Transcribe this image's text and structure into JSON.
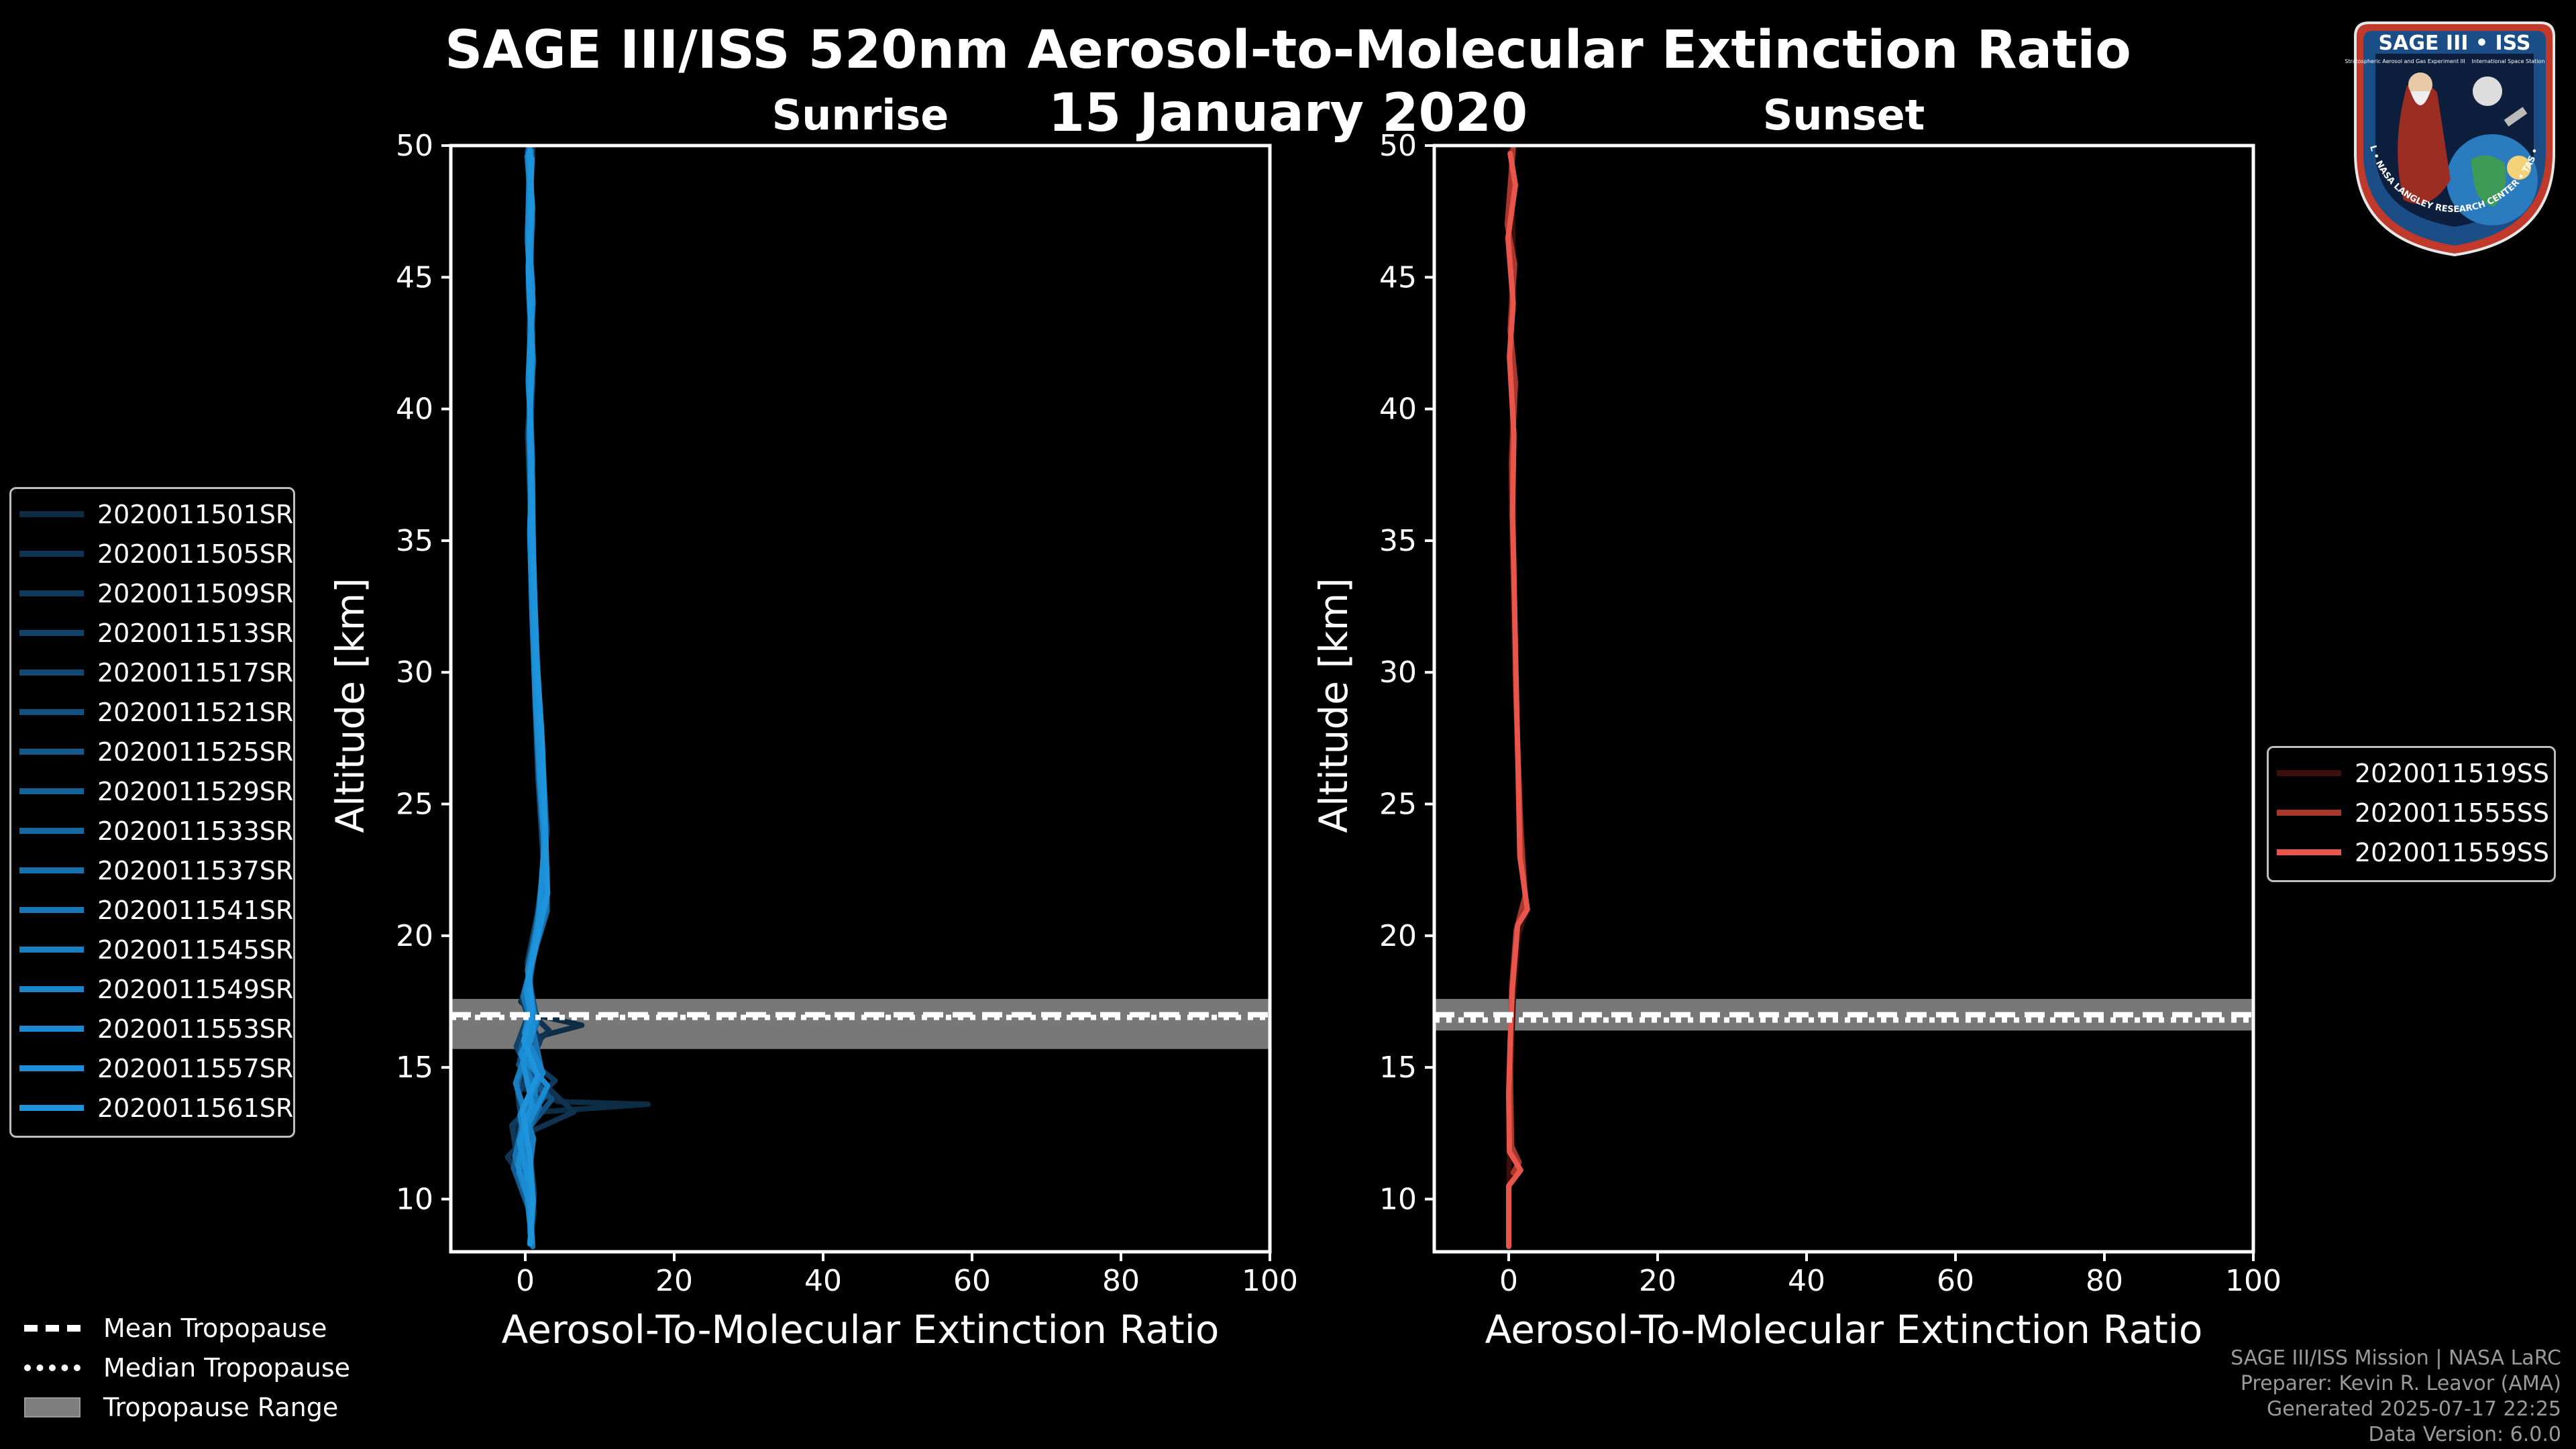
{
  "title": {
    "line1": "SAGE III/ISS 520nm Aerosol-to-Molecular Extinction Ratio",
    "line2": "15 January 2020"
  },
  "logo": {
    "label": "SAGE III • ISS",
    "ring_text": "BALL • NASA LANGLEY RESEARCH CENTER • TAS • ESA",
    "subtitle_left": "Stratospheric Aerosol and Gas Experiment III",
    "subtitle_right": "International Space Station"
  },
  "colors": {
    "sunrise": "#1a87c8",
    "sunset": "#e8554a",
    "tropo_band": "#7e7e7e"
  },
  "chart_data": [
    {
      "type": "line",
      "panel": "sunrise",
      "title": "Sunrise",
      "xlabel": "Aerosol-To-Molecular Extinction Ratio",
      "ylabel": "Altitude [km]",
      "xlim": [
        -10,
        100
      ],
      "ylim": [
        8,
        50
      ],
      "xticks": [
        0,
        20,
        40,
        60,
        80,
        100
      ],
      "yticks": [
        10,
        15,
        20,
        25,
        30,
        35,
        40,
        45,
        50
      ],
      "tropopause": {
        "mean": 17.0,
        "median": 16.9,
        "range": [
          15.7,
          17.6
        ]
      },
      "series": [
        {
          "name": "2020011501SR",
          "color": "#0d2d44",
          "x": [
            0.7,
            0.4,
            0.9,
            0.5,
            1.0,
            0.6,
            0.8,
            1.2,
            1.6,
            2.4,
            3.0,
            1.6,
            0.4,
            -0.6,
            1.2,
            7.6,
            2.2,
            0.5,
            -0.3,
            4.5,
            16.5,
            1.5,
            -1.2,
            0.4,
            1.0,
            0.6,
            1.0
          ],
          "y": [
            49.8,
            47,
            45,
            43,
            41,
            38,
            35,
            32,
            29,
            26,
            21,
            20,
            18,
            17.5,
            17,
            16.6,
            16.2,
            15.5,
            14.2,
            13.7,
            13.6,
            13.3,
            12.7,
            11.5,
            10,
            9,
            8.2
          ]
        },
        {
          "name": "2020011505SR",
          "color": "#0f3350",
          "x": [
            0.2,
            0.8,
            0.4,
            0.9,
            0.3,
            0.7,
            0.9,
            1.3,
            1.8,
            2.2,
            2.6,
            1.2,
            0.1,
            1.0,
            3.2,
            -0.8,
            6.5,
            1.0,
            -2.4,
            0.2,
            1.2,
            0.7
          ],
          "y": [
            49.6,
            47.5,
            44.5,
            42,
            39,
            36,
            33,
            30,
            27,
            25,
            21.5,
            19.5,
            18,
            17,
            16.4,
            15.3,
            13.3,
            12.6,
            11.6,
            10.6,
            9.5,
            8.4
          ]
        },
        {
          "name": "2020011509SR",
          "color": "#103a5c",
          "x": [
            1.0,
            0.5,
            1.1,
            0.6,
            0.9,
            0.7,
            1.1,
            1.5,
            2.0,
            2.8,
            2.2,
            0.7,
            -0.4,
            0.5,
            2.0,
            0.8,
            4.0,
            0.2,
            -1.8,
            -1.0,
            0.5,
            0.9
          ],
          "y": [
            49.9,
            46.5,
            44,
            41.5,
            38.5,
            35.5,
            31.5,
            28,
            25.5,
            22,
            20.5,
            18.8,
            17.6,
            16.8,
            16,
            15.2,
            14.5,
            13.4,
            12.8,
            11.4,
            10,
            8.6
          ]
        },
        {
          "name": "2020011513SR",
          "color": "#114268",
          "x": [
            0.5,
            1.0,
            0.4,
            0.9,
            0.6,
            0.8,
            1.2,
            1.4,
            1.9,
            2.6,
            1.6,
            0.3,
            0.8,
            -1.2,
            0.6,
            -1.0,
            0.4,
            0.8
          ],
          "y": [
            49.7,
            47.2,
            44.8,
            42.3,
            39.5,
            36.2,
            33.2,
            30,
            27.5,
            23,
            20.8,
            19,
            17.3,
            15.8,
            14.7,
            14,
            11,
            8.8
          ]
        },
        {
          "name": "2020011517SR",
          "color": "#124a74",
          "x": [
            0.8,
            0.3,
            0.8,
            0.4,
            1.0,
            0.6,
            1.0,
            1.3,
            1.7,
            2.5,
            2.0,
            0.5,
            1.5,
            -0.2,
            1.8,
            -0.8,
            0.6,
            1.2,
            0.7
          ],
          "y": [
            49.5,
            46.8,
            44.2,
            41,
            38,
            35,
            32,
            29,
            26,
            22.5,
            20.2,
            18.4,
            16.9,
            16.1,
            14.6,
            13,
            11.8,
            10.2,
            8.5
          ]
        },
        {
          "name": "2020011521SR",
          "color": "#135280",
          "x": [
            0.3,
            0.9,
            0.5,
            1.0,
            0.6,
            0.9,
            1.1,
            1.5,
            2.1,
            2.9,
            1.9,
            0.9,
            0.2,
            1.3,
            -0.9,
            3.6,
            -0.3,
            0.8,
            0.6
          ],
          "y": [
            49.8,
            47.8,
            45.6,
            42.8,
            40,
            37,
            34,
            31,
            28,
            24,
            20.6,
            19.2,
            17.8,
            16.5,
            15.1,
            13.8,
            12.4,
            10.8,
            8.7
          ]
        },
        {
          "name": "2020011525SR",
          "color": "#145a8c",
          "x": [
            0.9,
            0.4,
            0.7,
            0.5,
            0.8,
            0.9,
            1.0,
            1.6,
            2.3,
            2.7,
            1.4,
            0.6,
            0.9,
            -0.7,
            2.6,
            0.1,
            -1.6,
            0.5,
            1.0
          ],
          "y": [
            49.6,
            46.2,
            43.6,
            40.8,
            37.6,
            34.5,
            31.8,
            28.6,
            25.8,
            21.8,
            19.8,
            18.2,
            17.1,
            15.6,
            13.9,
            12.9,
            11.2,
            9.6,
            8.3
          ]
        },
        {
          "name": "2020011529SR",
          "color": "#156298",
          "x": [
            0.4,
            0.8,
            0.6,
            1.1,
            0.5,
            0.7,
            1.2,
            1.4,
            2.0,
            2.8,
            1.8,
            0.4,
            1.1,
            0.2,
            -1.1,
            1.0,
            0.3,
            0.9
          ],
          "y": [
            49.9,
            47.4,
            44.4,
            41.8,
            39.2,
            36.5,
            33.8,
            30.6,
            27.2,
            23.5,
            21,
            18.6,
            17.2,
            15.9,
            14.2,
            12.2,
            10.4,
            8.6
          ]
        },
        {
          "name": "2020011533SR",
          "color": "#166aa4",
          "x": [
            0.7,
            0.3,
            0.9,
            0.5,
            0.9,
            0.6,
            0.9,
            1.3,
            1.8,
            2.4,
            2.9,
            1.5,
            0.2,
            1.6,
            -0.4,
            1.9,
            -0.6,
            0.7,
            0.8
          ],
          "y": [
            49.7,
            46.6,
            43.9,
            41.2,
            38.4,
            35.2,
            32.4,
            29.4,
            26.6,
            24.2,
            20.9,
            19.6,
            18,
            16.7,
            15.4,
            13.5,
            12,
            10.6,
            8.4
          ]
        },
        {
          "name": "2020011537SR",
          "color": "#1772b0",
          "x": [
            0.5,
            1.0,
            0.4,
            0.8,
            0.7,
            1.0,
            1.1,
            1.6,
            2.2,
            2.6,
            1.7,
            0.8,
            -0.3,
            0.9,
            2.2,
            -0.2,
            -1.4,
            0.4,
            0.9
          ],
          "y": [
            49.5,
            47.6,
            45.2,
            42.6,
            39.8,
            37.2,
            33.5,
            30.4,
            27.4,
            22.4,
            20.3,
            18.9,
            17.7,
            16.6,
            14.9,
            13.1,
            11.6,
            10,
            8.5
          ]
        },
        {
          "name": "2020011541SR",
          "color": "#1879b8",
          "x": [
            0.8,
            0.4,
            1.0,
            0.6,
            0.8,
            0.7,
            1.2,
            1.5,
            2.0,
            2.9,
            1.3,
            0.5,
            1.2,
            -0.5,
            1.4,
            0.4,
            -0.9,
            0.6,
            1.0
          ],
          "y": [
            49.8,
            46.9,
            44.6,
            41.6,
            38.8,
            35.8,
            32.8,
            29.8,
            26.2,
            21.2,
            19.4,
            18.3,
            16.8,
            15.4,
            14.1,
            12.5,
            11,
            9.8,
            8.2
          ]
        },
        {
          "name": "2020011545SR",
          "color": "#197fc0",
          "x": [
            0.3,
            0.9,
            0.6,
            1.0,
            0.5,
            0.8,
            1.0,
            1.4,
            2.1,
            2.5,
            1.9,
            0.3,
            1.0,
            0.4,
            -1.3,
            1.1,
            0.2,
            0.8
          ],
          "y": [
            49.6,
            47.1,
            44.3,
            41.9,
            39,
            36.1,
            33.1,
            30.1,
            27.1,
            23.2,
            20.7,
            18.7,
            17,
            15.8,
            14.4,
            12.3,
            10.2,
            8.5
          ]
        },
        {
          "name": "2020011549SR",
          "color": "#1a85c8",
          "x": [
            0.6,
            0.3,
            0.8,
            0.4,
            0.9,
            0.6,
            0.9,
            1.3,
            1.9,
            2.7,
            1.6,
            0.6,
            0.8,
            -0.1,
            2.4,
            -0.7,
            0.5,
            1.1,
            0.6
          ],
          "y": [
            49.9,
            46.4,
            43.7,
            41.1,
            38.1,
            35.4,
            32.2,
            29.2,
            25.9,
            22.8,
            20.4,
            18.5,
            17.4,
            16.3,
            14.8,
            13.2,
            11.4,
            9.9,
            8.3
          ]
        },
        {
          "name": "2020011553SR",
          "color": "#1b8ad0",
          "x": [
            0.4,
            0.8,
            0.5,
            0.9,
            0.6,
            0.9,
            1.1,
            1.5,
            2.2,
            2.8,
            1.5,
            0.4,
            1.4,
            -0.6,
            3.0,
            0.3,
            -1.0,
            0.7,
            0.9
          ],
          "y": [
            49.7,
            47.3,
            44.9,
            42.1,
            39.4,
            36.4,
            33.6,
            30.7,
            27.8,
            22.1,
            19.9,
            18.4,
            16.7,
            15.5,
            14.3,
            12.8,
            11.3,
            9.7,
            8.4
          ]
        },
        {
          "name": "2020011557SR",
          "color": "#1c8fd6",
          "x": [
            0.9,
            0.5,
            1.0,
            0.5,
            0.8,
            0.7,
            1.0,
            1.4,
            2.0,
            2.6,
            1.8,
            0.7,
            0.1,
            1.1,
            -0.3,
            0.9,
            -0.8,
            0.5,
            0.8
          ],
          "y": [
            49.5,
            46.7,
            44.1,
            41.4,
            38.6,
            35.6,
            32.6,
            29.6,
            26.4,
            23.8,
            20.6,
            18.8,
            17.9,
            16.4,
            15.2,
            13.6,
            12.2,
            10.5,
            8.6
          ]
        },
        {
          "name": "2020011561SR",
          "color": "#1d94dc",
          "x": [
            0.6,
            0.9,
            0.4,
            0.9,
            0.6,
            0.9,
            1.2,
            1.6,
            2.3,
            3.0,
            1.7,
            0.5,
            0.9,
            -0.2,
            1.7,
            -0.4,
            0.6,
            1.0,
            0.7
          ],
          "y": [
            49.8,
            47.7,
            45.4,
            42.4,
            39.6,
            36.8,
            33.4,
            30.3,
            27.3,
            21.6,
            20,
            18.5,
            17.1,
            16,
            14.7,
            13.4,
            11.7,
            10.1,
            8.3
          ]
        }
      ]
    },
    {
      "type": "line",
      "panel": "sunset",
      "title": "Sunset",
      "xlabel": "Aerosol-To-Molecular Extinction Ratio",
      "ylabel": "Altitude [km]",
      "xlim": [
        -10,
        100
      ],
      "ylim": [
        8,
        50
      ],
      "xticks": [
        0,
        20,
        40,
        60,
        80,
        100
      ],
      "yticks": [
        10,
        15,
        20,
        25,
        30,
        35,
        40,
        45,
        50
      ],
      "tropopause": {
        "mean": 17.0,
        "median": 16.8,
        "range": [
          16.4,
          17.6
        ]
      },
      "series": [
        {
          "name": "2020011519SS",
          "color": "#3a0f0c",
          "x": [
            0.3,
            0.6,
            0.2,
            0.5,
            0.3,
            0.6,
            0.8,
            1.2,
            1.9,
            2.4,
            1.3,
            0.6,
            0.3,
            0.1,
            0.0
          ],
          "y": [
            49.8,
            46,
            43,
            40,
            37,
            33,
            30,
            27,
            23,
            21,
            20,
            17.5,
            15,
            12,
            8.3
          ]
        },
        {
          "name": "2020011555SS",
          "color": "#a9362c",
          "x": [
            0.6,
            -0.2,
            0.8,
            0.2,
            0.9,
            0.4,
            0.7,
            1.0,
            1.6,
            2.2,
            1.0,
            0.4,
            0.2,
            0.4,
            1.4,
            0.6
          ],
          "y": [
            49.9,
            47,
            45.5,
            43,
            41,
            38,
            34,
            29,
            24,
            21.5,
            20.2,
            18,
            15,
            12,
            11.4,
            11
          ]
        },
        {
          "name": "2020011559SS",
          "color": "#e8554a",
          "x": [
            0.2,
            0.9,
            -0.1,
            0.6,
            0.1,
            0.7,
            0.5,
            0.9,
            1.5,
            2.5,
            1.2,
            0.5,
            0.2,
            0.0,
            0.1,
            1.6,
            0.0,
            0.0
          ],
          "y": [
            49.7,
            48.5,
            46.5,
            44,
            42,
            39,
            36,
            31,
            23,
            21,
            20.4,
            18,
            16,
            14,
            11.8,
            11.1,
            10.5,
            8.2
          ]
        }
      ]
    }
  ],
  "legend_tropopause": [
    {
      "label": "Mean Tropopause",
      "style": "dashed"
    },
    {
      "label": "Median Tropopause",
      "style": "dotted"
    },
    {
      "label": "Tropopause Range",
      "style": "band"
    }
  ],
  "footer": {
    "line1": "SAGE III/ISS Mission | NASA LaRC",
    "line2": "Preparer: Kevin R. Leavor (AMA)",
    "line3": "Generated 2025-07-17 22:25",
    "line4": "Data Version: 6.0.0"
  }
}
